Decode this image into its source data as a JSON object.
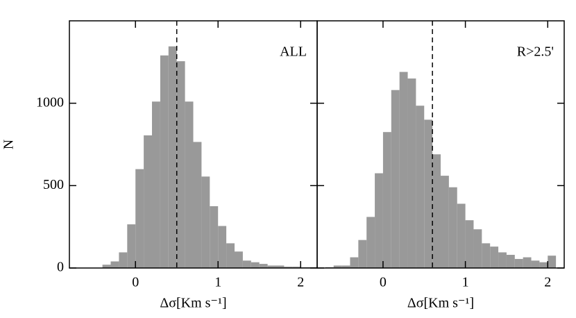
{
  "chart_data": [
    {
      "type": "histogram",
      "color": "#999999",
      "ylabel": "N",
      "xlabel": "Δσ[Km s⁻¹]",
      "annotation": "ALL",
      "vline": 0.5,
      "bins": [
        -0.8,
        -0.7,
        -0.6,
        -0.5,
        -0.4,
        -0.3,
        -0.2,
        -0.1,
        0,
        0.1,
        0.2,
        0.3,
        0.4,
        0.5,
        0.6,
        0.7,
        0.8,
        0.9,
        1.0,
        1.1,
        1.2,
        1.3,
        1.4,
        1.5,
        1.6,
        1.7,
        1.8,
        1.9,
        2.0,
        2.1,
        2.2
      ],
      "values": [
        0,
        0,
        0,
        0,
        20,
        40,
        95,
        265,
        600,
        805,
        1010,
        1290,
        1345,
        1255,
        1010,
        765,
        555,
        375,
        255,
        150,
        100,
        45,
        35,
        25,
        15,
        15,
        8,
        8,
        5,
        5
      ],
      "xlim": [
        -0.8,
        2.2
      ],
      "ylim": [
        0,
        1500
      ],
      "xticks": [
        0,
        1,
        2
      ],
      "yticks": [
        0,
        500,
        1000
      ],
      "show_ytick_labels": true
    },
    {
      "type": "histogram",
      "color": "#999999",
      "xlabel": "Δσ[Km s⁻¹]",
      "annotation": "R>2.5'",
      "vline": 0.6,
      "bins": [
        -0.8,
        -0.7,
        -0.6,
        -0.5,
        -0.4,
        -0.3,
        -0.2,
        -0.1,
        0,
        0.1,
        0.2,
        0.3,
        0.4,
        0.5,
        0.6,
        0.7,
        0.8,
        0.9,
        1.0,
        1.1,
        1.2,
        1.3,
        1.4,
        1.5,
        1.6,
        1.7,
        1.8,
        1.9,
        2.0,
        2.1,
        2.2
      ],
      "values": [
        0,
        5,
        15,
        15,
        65,
        170,
        310,
        575,
        825,
        1080,
        1190,
        1150,
        985,
        900,
        690,
        560,
        490,
        390,
        290,
        235,
        150,
        130,
        95,
        80,
        55,
        65,
        45,
        35,
        75,
        0
      ],
      "xlim": [
        -0.8,
        2.2
      ],
      "ylim": [
        0,
        1500
      ],
      "xticks": [
        0,
        1,
        2
      ],
      "yticks": [
        0,
        500,
        1000
      ],
      "show_ytick_labels": false
    }
  ]
}
